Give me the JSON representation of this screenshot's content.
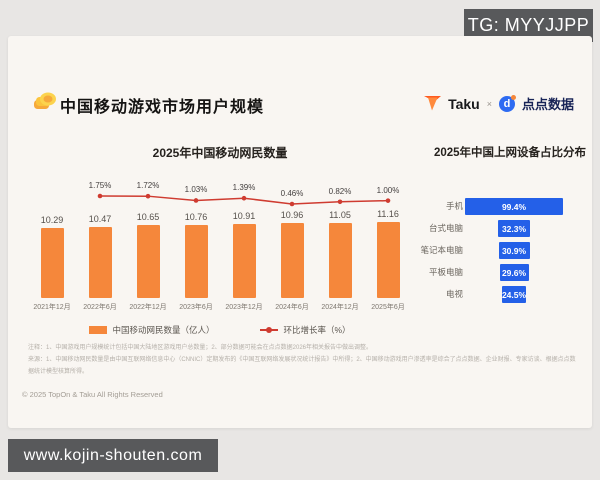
{
  "overlays": {
    "tg_badge": "TG: MYYJJPP",
    "site_badge": "www.kojin-shouten.com"
  },
  "header": {
    "title": "中国移动游戏市场用户规模",
    "brand_taku": "Taku",
    "brand_separator": "×",
    "brand_dotdata": "点点数据"
  },
  "chart_data": [
    {
      "type": "bar",
      "title": "2025年中国移动网民数量",
      "categories": [
        "2021年12月",
        "2022年6月",
        "2022年12月",
        "2023年6月",
        "2023年12月",
        "2024年6月",
        "2024年12月",
        "2025年6月"
      ],
      "series": [
        {
          "name": "中国移动网民数量（亿人）",
          "type": "bar",
          "values": [
            10.29,
            10.47,
            10.65,
            10.76,
            10.91,
            10.96,
            11.05,
            11.16
          ]
        },
        {
          "name": "环比增长率（%）",
          "type": "line",
          "values": [
            null,
            1.75,
            1.72,
            1.03,
            1.39,
            0.46,
            0.82,
            1.0
          ]
        }
      ],
      "ylim": [
        0,
        11.16
      ],
      "grid": false,
      "legend_position": "bottom"
    },
    {
      "type": "bar",
      "orientation": "horizontal-centered-funnel",
      "title": "2025年中国上网设备占比分布",
      "categories": [
        "手机",
        "台式电脑",
        "笔记本电脑",
        "平板电脑",
        "电视"
      ],
      "values": [
        99.4,
        32.3,
        30.9,
        29.6,
        24.5
      ],
      "unit": "%",
      "xlim": [
        0,
        100
      ]
    }
  ],
  "notes": {
    "line1": "注释：1、中国游戏用户规模统计包括中国大陆地区游戏用户总数量；2、部分数据可能会在点点数据2026年相关报告中做出调整。",
    "line2": "来源：1、中国移动网民数量是由中国互联网络信息中心（CNNIC）定期发布的《中国互联网络发展状况统计报告》中所得；2、中国移动游戏用户渗透率是综合了点点数据、企业财报、专家访谈、根据点点数据统计模型核算所得。"
  },
  "footer": {
    "copyright": "© 2025 TopOn & Taku All Rights Reserved"
  },
  "colors": {
    "bar_orange": "#f5873b",
    "line_red": "#cf3b30",
    "funnel_blue": "#2460e8",
    "badge_gray": "#58595b",
    "slide_bg": "#f9f6f2",
    "page_bg": "#e8e6e4"
  }
}
